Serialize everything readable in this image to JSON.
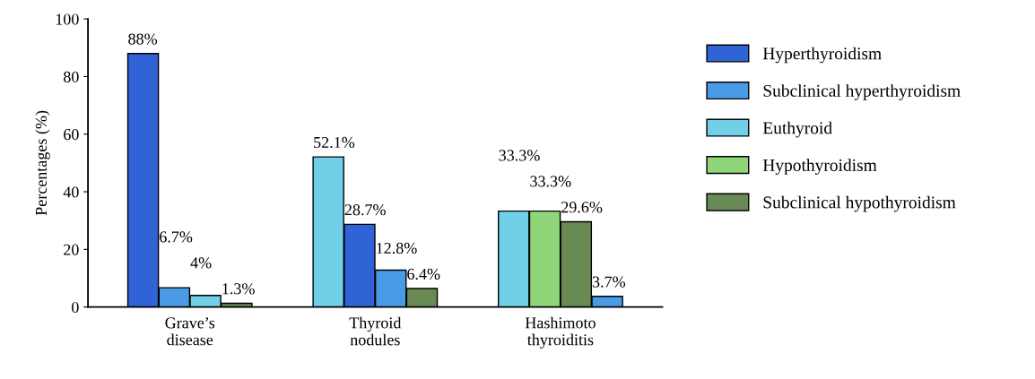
{
  "chart_data": {
    "type": "bar",
    "ylabel": "Percentages (%)",
    "categories": [
      "Grave’s\ndisease",
      "Thyroid\nnodules",
      "Hashimoto\nthyroiditis"
    ],
    "series": [
      {
        "name": "Hyperthyroidism",
        "color": "#2f63d6",
        "values": [
          88,
          28.7,
          null
        ],
        "value_labels": [
          "88%",
          "28.7%",
          null
        ]
      },
      {
        "name": "Subclinical hyperthyroidism",
        "color": "#4a9be6",
        "values": [
          6.7,
          12.8,
          3.7
        ],
        "value_labels": [
          "6.7%",
          "12.8%",
          "3.7%"
        ]
      },
      {
        "name": "Euthyroid",
        "color": "#6fd0e8",
        "values": [
          4,
          52.1,
          33.3
        ],
        "value_labels": [
          "4%",
          "52.1%",
          "33.3%"
        ]
      },
      {
        "name": "Hypothyroidism",
        "color": "#8fd67a",
        "values": [
          null,
          null,
          33.3
        ],
        "value_labels": [
          null,
          null,
          "33.3%"
        ]
      },
      {
        "name": "Subclinical hypothyroidism",
        "color": "#6a8a55",
        "values": [
          1.3,
          6.4,
          29.6
        ],
        "value_labels": [
          "1.3%",
          "6.4%",
          "29.6%"
        ]
      }
    ],
    "ylim": [
      0,
      100
    ],
    "yticks": [
      0,
      20,
      40,
      60,
      80,
      100
    ],
    "grid": false,
    "legend": "right"
  }
}
